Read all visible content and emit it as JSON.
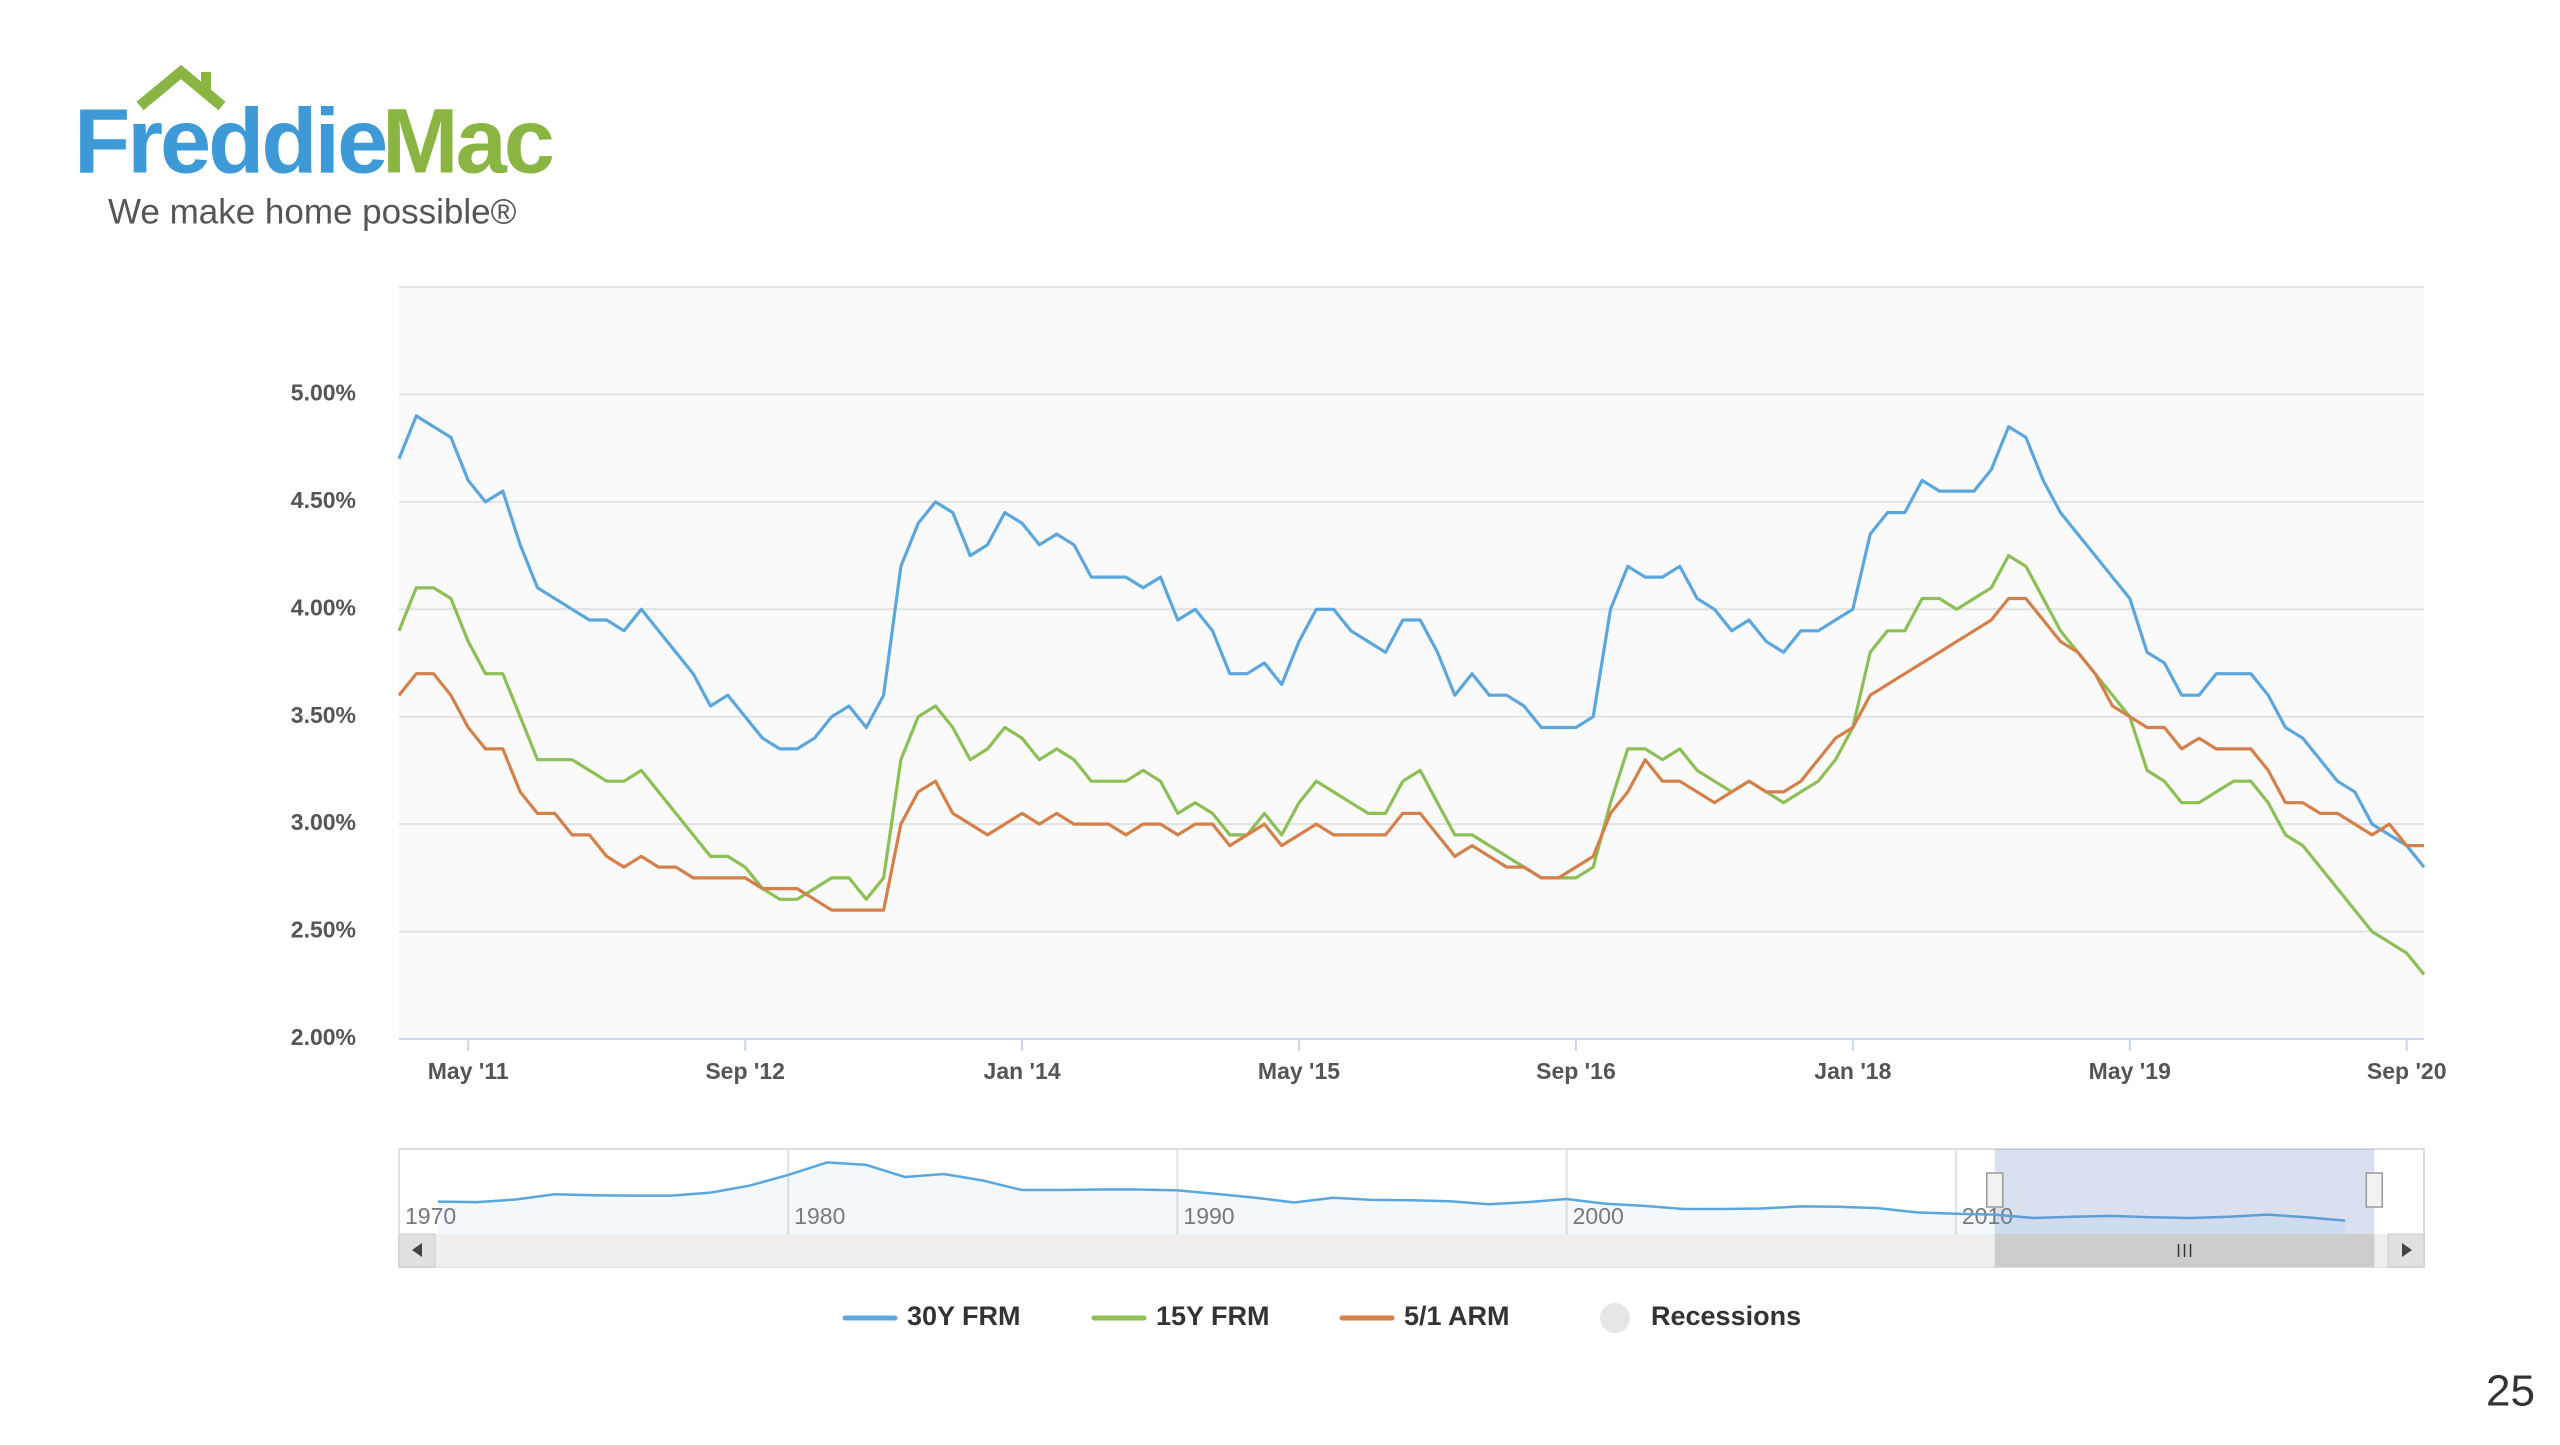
{
  "header": {
    "brand_first": "Freddie",
    "brand_second": "Mac",
    "tagline": "We make home possible®"
  },
  "page_number": "25",
  "chart_data": {
    "type": "line",
    "x": [
      "2011-01",
      "2011-02",
      "2011-03",
      "2011-04",
      "2011-05",
      "2011-06",
      "2011-07",
      "2011-08",
      "2011-09",
      "2011-10",
      "2011-11",
      "2011-12",
      "2012-01",
      "2012-02",
      "2012-03",
      "2012-04",
      "2012-05",
      "2012-06",
      "2012-07",
      "2012-08",
      "2012-09",
      "2012-10",
      "2012-11",
      "2012-12",
      "2013-01",
      "2013-02",
      "2013-03",
      "2013-04",
      "2013-05",
      "2013-06",
      "2013-07",
      "2013-08",
      "2013-09",
      "2013-10",
      "2013-11",
      "2013-12",
      "2014-01",
      "2014-02",
      "2014-03",
      "2014-04",
      "2014-05",
      "2014-06",
      "2014-07",
      "2014-08",
      "2014-09",
      "2014-10",
      "2014-11",
      "2014-12",
      "2015-01",
      "2015-02",
      "2015-03",
      "2015-04",
      "2015-05",
      "2015-06",
      "2015-07",
      "2015-08",
      "2015-09",
      "2015-10",
      "2015-11",
      "2015-12",
      "2016-01",
      "2016-02",
      "2016-03",
      "2016-04",
      "2016-05",
      "2016-06",
      "2016-07",
      "2016-08",
      "2016-09",
      "2016-10",
      "2016-11",
      "2016-12",
      "2017-01",
      "2017-02",
      "2017-03",
      "2017-04",
      "2017-05",
      "2017-06",
      "2017-07",
      "2017-08",
      "2017-09",
      "2017-10",
      "2017-11",
      "2017-12",
      "2018-01",
      "2018-02",
      "2018-03",
      "2018-04",
      "2018-05",
      "2018-06",
      "2018-07",
      "2018-08",
      "2018-09",
      "2018-10",
      "2018-11",
      "2018-12",
      "2019-01",
      "2019-02",
      "2019-03",
      "2019-04",
      "2019-05",
      "2019-06",
      "2019-07",
      "2019-08",
      "2019-09",
      "2019-10",
      "2019-11",
      "2019-12",
      "2020-01",
      "2020-02",
      "2020-03",
      "2020-04",
      "2020-05",
      "2020-06",
      "2020-07",
      "2020-08",
      "2020-09",
      "2020-10"
    ],
    "series": [
      {
        "name": "30Y FRM",
        "color": "#5ba7dd",
        "values": [
          4.7,
          4.9,
          4.85,
          4.8,
          4.6,
          4.5,
          4.55,
          4.3,
          4.1,
          4.05,
          4.0,
          3.95,
          3.95,
          3.9,
          4.0,
          3.9,
          3.8,
          3.7,
          3.55,
          3.6,
          3.5,
          3.4,
          3.35,
          3.35,
          3.4,
          3.5,
          3.55,
          3.45,
          3.6,
          4.2,
          4.4,
          4.5,
          4.45,
          4.25,
          4.3,
          4.45,
          4.4,
          4.3,
          4.35,
          4.3,
          4.15,
          4.15,
          4.15,
          4.1,
          4.15,
          3.95,
          4.0,
          3.9,
          3.7,
          3.7,
          3.75,
          3.65,
          3.85,
          4.0,
          4.0,
          3.9,
          3.85,
          3.8,
          3.95,
          3.95,
          3.8,
          3.6,
          3.7,
          3.6,
          3.6,
          3.55,
          3.45,
          3.45,
          3.45,
          3.5,
          4.0,
          4.2,
          4.15,
          4.15,
          4.2,
          4.05,
          4.0,
          3.9,
          3.95,
          3.85,
          3.8,
          3.9,
          3.9,
          3.95,
          4.0,
          4.35,
          4.45,
          4.45,
          4.6,
          4.55,
          4.55,
          4.55,
          4.65,
          4.85,
          4.8,
          4.6,
          4.45,
          4.35,
          4.25,
          4.15,
          4.05,
          3.8,
          3.75,
          3.6,
          3.6,
          3.7,
          3.7,
          3.7,
          3.6,
          3.45,
          3.4,
          3.3,
          3.2,
          3.15,
          3.0,
          2.95,
          2.9,
          2.8
        ]
      },
      {
        "name": "15Y FRM",
        "color": "#8cbf55",
        "values": [
          3.9,
          4.1,
          4.1,
          4.05,
          3.85,
          3.7,
          3.7,
          3.5,
          3.3,
          3.3,
          3.3,
          3.25,
          3.2,
          3.2,
          3.25,
          3.15,
          3.05,
          2.95,
          2.85,
          2.85,
          2.8,
          2.7,
          2.65,
          2.65,
          2.7,
          2.75,
          2.75,
          2.65,
          2.75,
          3.3,
          3.5,
          3.55,
          3.45,
          3.3,
          3.35,
          3.45,
          3.4,
          3.3,
          3.35,
          3.3,
          3.2,
          3.2,
          3.2,
          3.25,
          3.2,
          3.05,
          3.1,
          3.05,
          2.95,
          2.95,
          3.05,
          2.95,
          3.1,
          3.2,
          3.15,
          3.1,
          3.05,
          3.05,
          3.2,
          3.25,
          3.1,
          2.95,
          2.95,
          2.9,
          2.85,
          2.8,
          2.75,
          2.75,
          2.75,
          2.8,
          3.1,
          3.35,
          3.35,
          3.3,
          3.35,
          3.25,
          3.2,
          3.15,
          3.2,
          3.15,
          3.1,
          3.15,
          3.2,
          3.3,
          3.45,
          3.8,
          3.9,
          3.9,
          4.05,
          4.05,
          4.0,
          4.05,
          4.1,
          4.25,
          4.2,
          4.05,
          3.9,
          3.8,
          3.7,
          3.6,
          3.5,
          3.25,
          3.2,
          3.1,
          3.1,
          3.15,
          3.2,
          3.2,
          3.1,
          2.95,
          2.9,
          2.8,
          2.7,
          2.6,
          2.5,
          2.45,
          2.4,
          2.3
        ]
      },
      {
        "name": "5/1 ARM",
        "color": "#d4804a",
        "values": [
          3.6,
          3.7,
          3.7,
          3.6,
          3.45,
          3.35,
          3.35,
          3.15,
          3.05,
          3.05,
          2.95,
          2.95,
          2.85,
          2.8,
          2.85,
          2.8,
          2.8,
          2.75,
          2.75,
          2.75,
          2.75,
          2.7,
          2.7,
          2.7,
          2.65,
          2.6,
          2.6,
          2.6,
          2.6,
          3.0,
          3.15,
          3.2,
          3.05,
          3.0,
          2.95,
          3.0,
          3.05,
          3.0,
          3.05,
          3.0,
          3.0,
          3.0,
          2.95,
          3.0,
          3.0,
          2.95,
          3.0,
          3.0,
          2.9,
          2.95,
          3.0,
          2.9,
          2.95,
          3.0,
          2.95,
          2.95,
          2.95,
          2.95,
          3.05,
          3.05,
          2.95,
          2.85,
          2.9,
          2.85,
          2.8,
          2.8,
          2.75,
          2.75,
          2.8,
          2.85,
          3.05,
          3.15,
          3.3,
          3.2,
          3.2,
          3.15,
          3.1,
          3.15,
          3.2,
          3.15,
          3.15,
          3.2,
          3.3,
          3.4,
          3.45,
          3.6,
          3.65,
          3.7,
          3.75,
          3.8,
          3.85,
          3.9,
          3.95,
          4.05,
          4.05,
          3.95,
          3.85,
          3.8,
          3.7,
          3.55,
          3.5,
          3.45,
          3.45,
          3.35,
          3.4,
          3.35,
          3.35,
          3.35,
          3.25,
          3.1,
          3.1,
          3.05,
          3.05,
          3.0,
          2.95,
          3.0,
          2.9,
          2.9
        ]
      }
    ],
    "recessions": {
      "name": "Recessions",
      "color": "#e6e6e6"
    },
    "xlim": [
      "2011-01",
      "2020-10"
    ],
    "xticks": [
      {
        "value": "2011-05",
        "label": "May '11"
      },
      {
        "value": "2012-09",
        "label": "Sep '12"
      },
      {
        "value": "2014-01",
        "label": "Jan '14"
      },
      {
        "value": "2015-05",
        "label": "May '15"
      },
      {
        "value": "2016-09",
        "label": "Sep '16"
      },
      {
        "value": "2018-01",
        "label": "Jan '18"
      },
      {
        "value": "2019-05",
        "label": "May '19"
      },
      {
        "value": "2020-09",
        "label": "Sep '20"
      }
    ],
    "ylim": [
      2,
      5.5
    ],
    "yticks": [
      {
        "value": 2,
        "label": "2.00%"
      },
      {
        "value": 2.5,
        "label": "2.50%"
      },
      {
        "value": 3,
        "label": "3.00%"
      },
      {
        "value": 3.5,
        "label": "3.50%"
      },
      {
        "value": 4,
        "label": "4.00%"
      },
      {
        "value": 4.5,
        "label": "4.50%"
      },
      {
        "value": 5,
        "label": "5.00%"
      }
    ],
    "grid": true,
    "navigator": {
      "x": [
        1971,
        1972,
        1973,
        1974,
        1975,
        1976,
        1977,
        1978,
        1979,
        1980,
        1981,
        1982,
        1983,
        1984,
        1985,
        1986,
        1987,
        1988,
        1989,
        1990,
        1991,
        1992,
        1993,
        1994,
        1995,
        1996,
        1997,
        1998,
        1999,
        2000,
        2001,
        2002,
        2003,
        2004,
        2005,
        2006,
        2007,
        2008,
        2009,
        2010,
        2011,
        2012,
        2013,
        2014,
        2015,
        2016,
        2017,
        2018,
        2019,
        2020
      ],
      "values": [
        7.5,
        7.4,
        8.0,
        9.2,
        9.0,
        8.9,
        8.9,
        9.6,
        11.2,
        13.7,
        16.6,
        16.0,
        13.2,
        13.9,
        12.4,
        10.2,
        10.2,
        10.3,
        10.3,
        10.1,
        9.3,
        8.4,
        7.3,
        8.4,
        7.9,
        7.8,
        7.6,
        6.9,
        7.4,
        8.1,
        7.0,
        6.5,
        5.8,
        5.8,
        5.9,
        6.4,
        6.3,
        6.0,
        5.0,
        4.7,
        4.5,
        3.7,
        4.0,
        4.2,
        3.9,
        3.7,
        4.0,
        4.5,
        3.9,
        3.1
      ],
      "xlim": [
        1970,
        2021
      ],
      "ylim": [
        0,
        19
      ],
      "xticks": [
        1970,
        1980,
        1990,
        2000,
        2010
      ]
    }
  }
}
